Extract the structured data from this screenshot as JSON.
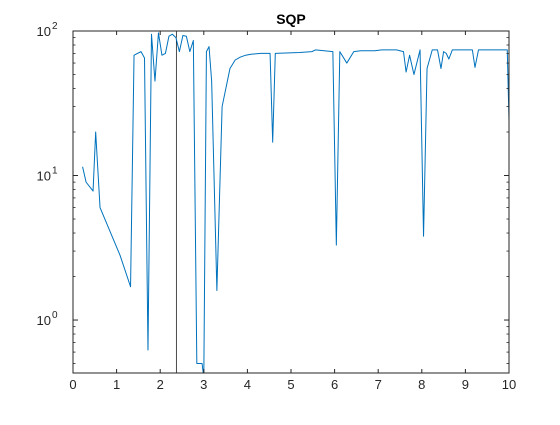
{
  "chart_data": {
    "type": "line",
    "title": "SQP",
    "xlabel": "",
    "ylabel": "",
    "xlim": [
      0,
      10
    ],
    "ylim": [
      0.43,
      100
    ],
    "yscale": "log",
    "grid": false,
    "legend": "none",
    "xticks": [
      0,
      1,
      2,
      3,
      4,
      5,
      6,
      7,
      8,
      9,
      10
    ],
    "xtick_labels": [
      "0",
      "1",
      "2",
      "3",
      "4",
      "5",
      "6",
      "7",
      "8",
      "9",
      "10"
    ],
    "yticks": [
      1,
      10,
      100
    ],
    "ytick_labels": [
      "10",
      "10",
      "10"
    ],
    "ytick_exponents": [
      "0",
      "1",
      "2"
    ],
    "vline_x": 2.37,
    "series": [
      {
        "color": "#0072BD",
        "x": [
          0.22,
          0.3,
          0.46,
          0.52,
          0.62,
          1.08,
          1.32,
          1.4,
          1.56,
          1.64,
          1.72,
          1.8,
          1.88,
          1.96,
          2.04,
          2.12,
          2.2,
          2.28,
          2.36,
          2.44,
          2.52,
          2.6,
          2.68,
          2.76,
          2.84,
          2.96,
          3.0,
          3.06,
          3.12,
          3.18,
          3.3,
          3.42,
          3.6,
          3.72,
          3.84,
          3.96,
          4.08,
          4.3,
          4.52,
          4.58,
          4.64,
          5.2,
          5.48,
          5.56,
          5.96,
          6.04,
          6.12,
          6.28,
          6.44,
          6.6,
          6.76,
          6.92,
          7.08,
          7.24,
          7.42,
          7.58,
          7.64,
          7.72,
          7.82,
          7.96,
          8.04,
          8.12,
          8.24,
          8.36,
          8.44,
          8.5,
          8.56,
          8.62,
          8.7,
          8.76,
          8.88,
          9.0,
          9.16,
          9.22,
          9.3,
          9.44,
          9.6,
          9.76,
          9.96,
          10.0
        ],
        "y": [
          11.5,
          9,
          7.8,
          20,
          6,
          2.8,
          1.7,
          68,
          72,
          65,
          0.62,
          95,
          45,
          97,
          68,
          70,
          92,
          95,
          90,
          72,
          93,
          92,
          72,
          86,
          0.5,
          0.5,
          0.4,
          72,
          78,
          45,
          1.6,
          30,
          55,
          63,
          66,
          68,
          69,
          70,
          70,
          17,
          70,
          71,
          72,
          74,
          72,
          3.3,
          72,
          60,
          72,
          73,
          73,
          73,
          74,
          74,
          74,
          72,
          52,
          68,
          50,
          74,
          3.8,
          55,
          74,
          74,
          55,
          72,
          70,
          64,
          74,
          74,
          74,
          74,
          74,
          56,
          74,
          74,
          74,
          74,
          74,
          24
        ]
      }
    ]
  }
}
